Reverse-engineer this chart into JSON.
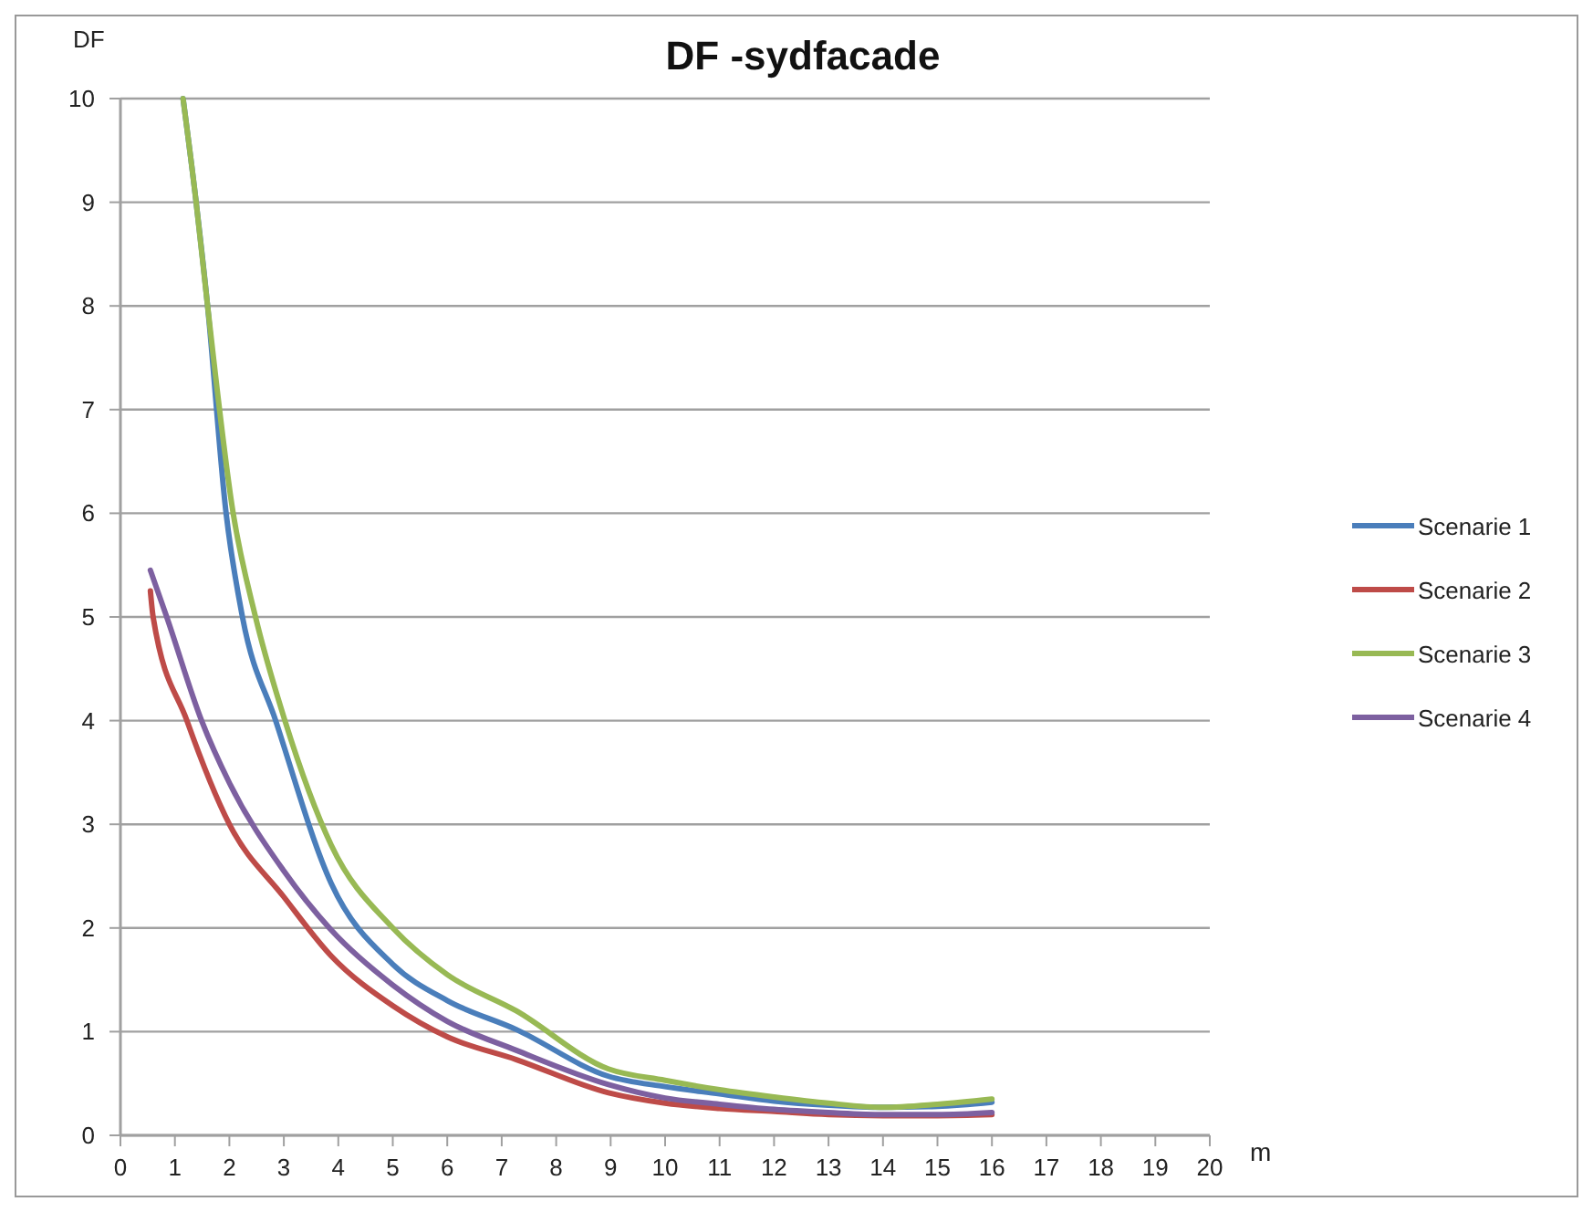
{
  "chart_data": {
    "type": "line",
    "title": "DF -sydfacade",
    "xlabel": "m",
    "ylabel": "DF",
    "xlim": [
      0,
      20
    ],
    "ylim": [
      0,
      10
    ],
    "xticks": [
      0,
      1,
      2,
      3,
      4,
      5,
      6,
      7,
      8,
      9,
      10,
      11,
      12,
      13,
      14,
      15,
      16,
      17,
      18,
      19,
      20
    ],
    "yticks": [
      0,
      1,
      2,
      3,
      4,
      5,
      6,
      7,
      8,
      9,
      10
    ],
    "grid": "y",
    "legend": "right",
    "marker": "none",
    "line_style": "solid",
    "series": [
      {
        "name": "Scenarie 1",
        "color": "#4a7ebb",
        "x": [
          1.15,
          1.39,
          1.6,
          1.94,
          2.24,
          2.85,
          3.87,
          5,
          6,
          7.27,
          8.96,
          10,
          11,
          12,
          13,
          14,
          15,
          16
        ],
        "values": [
          10,
          9,
          8,
          6,
          5,
          4,
          2.43,
          1.65,
          1.3,
          1.02,
          0.57,
          0.47,
          0.4,
          0.33,
          0.29,
          0.27,
          0.28,
          0.32
        ]
      },
      {
        "name": "Scenarie 2",
        "color": "#be4b48",
        "x": [
          0.55,
          0.6,
          1.22,
          2,
          3,
          3.87,
          5,
          6,
          7.27,
          8.96,
          10,
          11,
          12,
          13,
          14,
          15,
          16
        ],
        "values": [
          5.25,
          5,
          4,
          3.0,
          2.3,
          1.73,
          1.25,
          0.95,
          0.73,
          0.41,
          0.31,
          0.26,
          0.23,
          0.2,
          0.19,
          0.19,
          0.2
        ]
      },
      {
        "name": "Scenarie 3",
        "color": "#98b954",
        "x": [
          1.15,
          1.39,
          1.6,
          2.07,
          2.48,
          3.02,
          3.87,
          5,
          6,
          7.27,
          8.96,
          10,
          11,
          12,
          13,
          14,
          15,
          16
        ],
        "values": [
          10,
          9,
          8,
          6,
          5,
          4,
          2.8,
          2.0,
          1.55,
          1.2,
          0.64,
          0.53,
          0.44,
          0.37,
          0.31,
          0.27,
          0.3,
          0.35
        ]
      },
      {
        "name": "Scenarie 4",
        "color": "#7d60a0",
        "x": [
          0.55,
          0.85,
          1.49,
          2,
          3,
          3.87,
          5,
          6,
          7.27,
          8.96,
          10,
          11,
          12,
          13,
          14,
          15,
          16
        ],
        "values": [
          5.45,
          5,
          4,
          3.4,
          2.55,
          1.98,
          1.45,
          1.1,
          0.82,
          0.49,
          0.36,
          0.3,
          0.25,
          0.22,
          0.2,
          0.2,
          0.22
        ]
      }
    ]
  }
}
